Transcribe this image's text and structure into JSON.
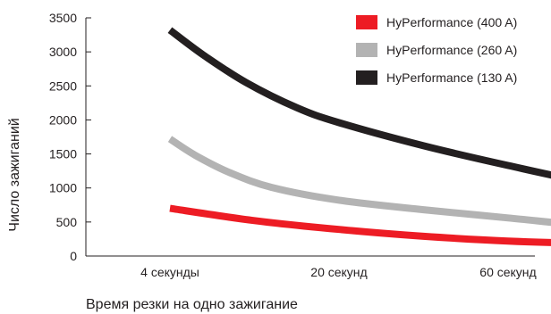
{
  "chart_data": {
    "type": "line",
    "title": "",
    "xlabel": "Время резки на одно зажигание",
    "ylabel": "Число зажиганий",
    "x_tick_labels": [
      "4 секунды",
      "20 секунд",
      "60 секунд"
    ],
    "y_ticks": [
      0,
      500,
      1000,
      1500,
      2000,
      2500,
      3000,
      3500
    ],
    "ylim": [
      0,
      3500
    ],
    "grid": false,
    "legend_position": "top-right",
    "series": [
      {
        "name": "HyPerformance (400 A)",
        "color": "#ed1c24",
        "points": [
          [
            0.0,
            700
          ],
          [
            0.5,
            520
          ],
          [
            1.0,
            390
          ],
          [
            1.5,
            290
          ],
          [
            2.0,
            220
          ],
          [
            2.5,
            185
          ],
          [
            3.0,
            170
          ]
        ]
      },
      {
        "name": "HyPerformance (260 A)",
        "color": "#b3b3b3",
        "points": [
          [
            0.0,
            1720
          ],
          [
            0.15,
            1480
          ],
          [
            0.35,
            1230
          ],
          [
            0.6,
            1010
          ],
          [
            1.0,
            820
          ],
          [
            1.5,
            680
          ],
          [
            2.0,
            560
          ],
          [
            2.5,
            440
          ],
          [
            3.0,
            380
          ]
        ]
      },
      {
        "name": "HyPerformance (130 A)",
        "color": "#231f20",
        "points": [
          [
            0.0,
            3320
          ],
          [
            0.2,
            2950
          ],
          [
            0.45,
            2550
          ],
          [
            0.75,
            2180
          ],
          [
            1.0,
            1960
          ],
          [
            1.5,
            1620
          ],
          [
            2.0,
            1330
          ],
          [
            2.5,
            1070
          ],
          [
            3.0,
            900
          ]
        ]
      }
    ]
  }
}
